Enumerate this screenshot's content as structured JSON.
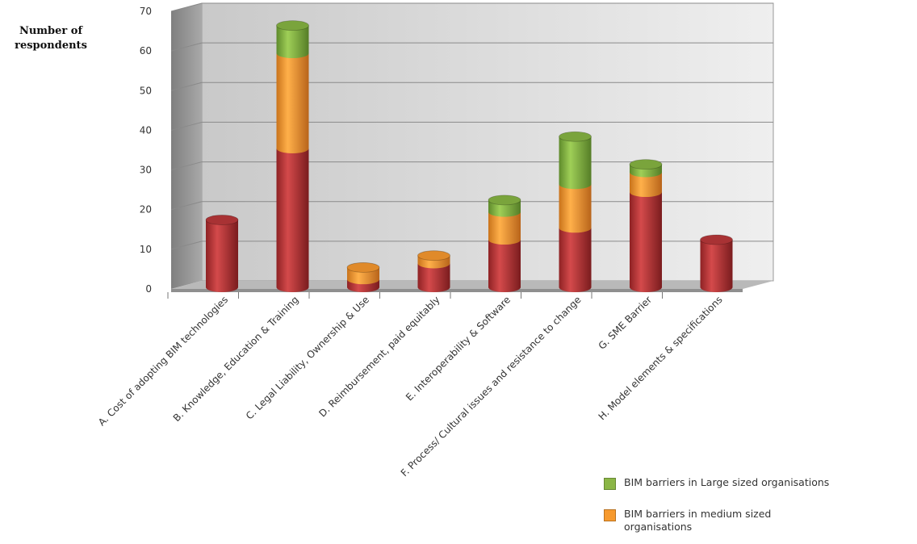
{
  "chart_data": {
    "type": "bar",
    "stacked": true,
    "style": "3d-cylinder",
    "ylabel": "Number of respondents",
    "ylim": [
      0,
      70
    ],
    "yticks": [
      "0",
      "10",
      "20",
      "30",
      "40",
      "50",
      "60",
      "70"
    ],
    "grid": true,
    "legend_position": "bottom-right",
    "categories": [
      "A. Cost of adopting BIM technologies",
      "B. Knowledge, Education & Training",
      "C. Legal Liability, Ownership & Use",
      "D. Reimbursement, paid equitably",
      "E. Interoperability & Software",
      "F. Process/ Cultural issues and resistance to change",
      "G. SME Barrier",
      "H. Model elements & specifications"
    ],
    "series": [
      {
        "name": "",
        "color": "#c0393b",
        "values": [
          17,
          35,
          2,
          6,
          12,
          15,
          24,
          12
        ]
      },
      {
        "name": "BIM barriers in medium sized organisations",
        "color": "#f79a2e",
        "values": [
          0,
          24,
          3,
          2,
          7,
          11,
          5,
          0
        ]
      },
      {
        "name": "BIM barriers in Large sized organisations",
        "color": "#8bb646",
        "values": [
          0,
          7,
          0,
          0,
          3,
          12,
          2,
          0
        ]
      }
    ]
  },
  "legend": [
    {
      "label": "BIM barriers in Large sized organisations",
      "color": "#8bb646"
    },
    {
      "label": "BIM barriers in medium sized organisations",
      "color": "#f79a2e"
    }
  ]
}
